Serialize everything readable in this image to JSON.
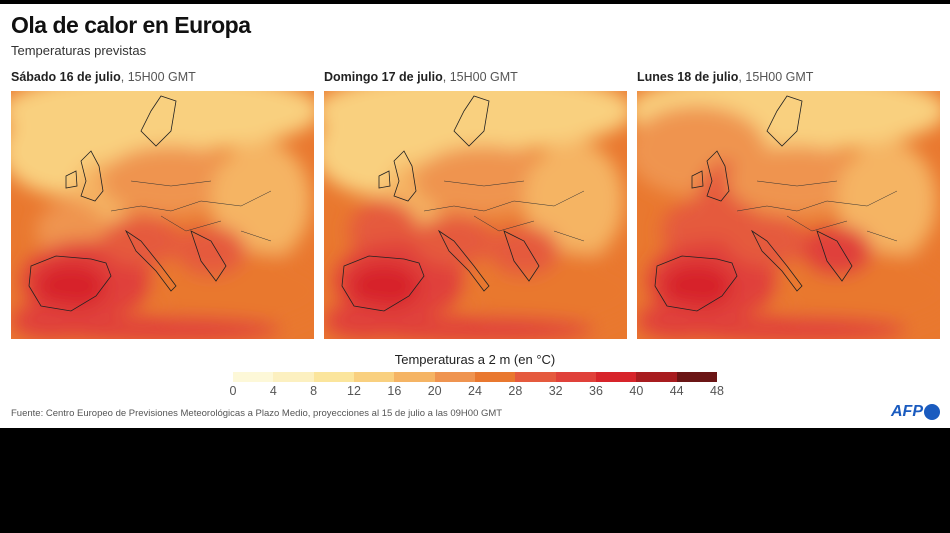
{
  "title": "Ola de calor en Europa",
  "subtitle": "Temperaturas previstas",
  "panels": [
    {
      "day": "Sábado 16 de julio",
      "time": ", 15H00 GMT"
    },
    {
      "day": "Domingo 17 de julio",
      "time": ", 15H00 GMT"
    },
    {
      "day": "Lunes 18 de julio",
      "time": ", 15H00 GMT"
    }
  ],
  "legend": {
    "title": "Temperaturas a 2 m (en °C)",
    "ticks": [
      "0",
      "4",
      "8",
      "12",
      "16",
      "20",
      "24",
      "28",
      "32",
      "36",
      "40",
      "44",
      "48"
    ],
    "colors": [
      "#fdf8d8",
      "#fcf0c0",
      "#fbe59c",
      "#f9d07f",
      "#f5b464",
      "#ef9450",
      "#e9782f",
      "#e55a3e",
      "#e0413a",
      "#d7242a",
      "#a81c1f",
      "#6b1515"
    ]
  },
  "source": "Fuente: Centro Europeo de Previsiones Meteorológicas a Plazo Medio, proyecciones al 15 de julio a las 09H00 GMT",
  "logo": "AFP"
}
